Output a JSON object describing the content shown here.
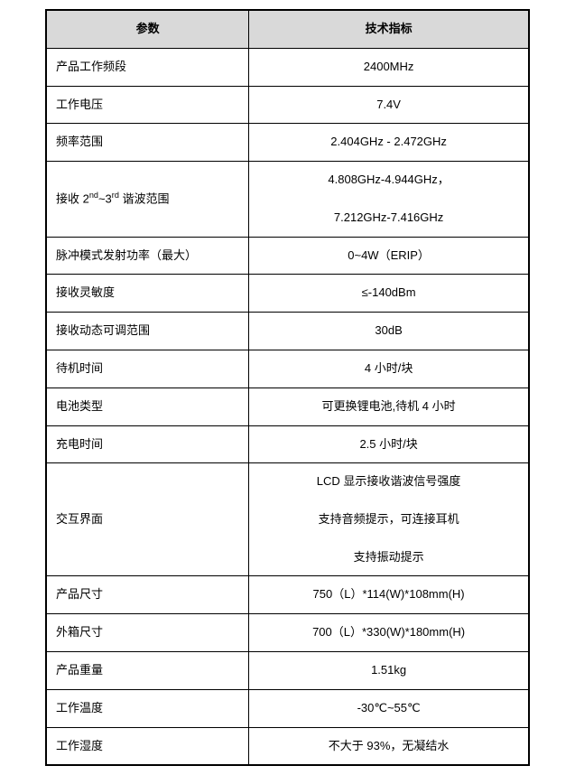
{
  "table": {
    "header": {
      "param": "参数",
      "value": "技术指标"
    },
    "border_color": "#000000",
    "header_bg": "#d9d9d9",
    "font_family": "Microsoft YaHei",
    "font_size_pt": 10,
    "rows": [
      {
        "param": "产品工作频段",
        "value": "2400MHz"
      },
      {
        "param": "工作电压",
        "value": "7.4V"
      },
      {
        "param": "频率范围",
        "value": "2.404GHz - 2.472GHz"
      },
      {
        "param": "接收 2ⁿᵈ~3ʳᵈ 谐波范围",
        "value": "4.808GHz-4.944GHz，\n7.212GHz-7.416GHz",
        "param_has_sup": true
      },
      {
        "param": "脉冲模式发射功率（最大）",
        "value": "0~4W（ERIP）"
      },
      {
        "param": "接收灵敏度",
        "value": "≤-140dBm"
      },
      {
        "param": "接收动态可调范围",
        "value": "30dB"
      },
      {
        "param": "待机时间",
        "value": "4 小时/块"
      },
      {
        "param": "电池类型",
        "value": "可更换锂电池,待机 4 小时"
      },
      {
        "param": "充电时间",
        "value": "2.5 小时/块"
      },
      {
        "param": "交互界面",
        "value": "LCD 显示接收谐波信号强度\n支持音频提示，可连接耳机\n支持振动提示"
      },
      {
        "param": "产品尺寸",
        "value": "750（L）*114(W)*108mm(H)"
      },
      {
        "param": "外箱尺寸",
        "value": "700（L）*330(W)*180mm(H)"
      },
      {
        "param": "产品重量",
        "value": "1.51kg"
      },
      {
        "param": "工作温度",
        "value": "-30℃~55℃"
      },
      {
        "param": "工作湿度",
        "value": "不大于 93%，无凝结水"
      }
    ]
  },
  "handles": {
    "plus": "+"
  }
}
